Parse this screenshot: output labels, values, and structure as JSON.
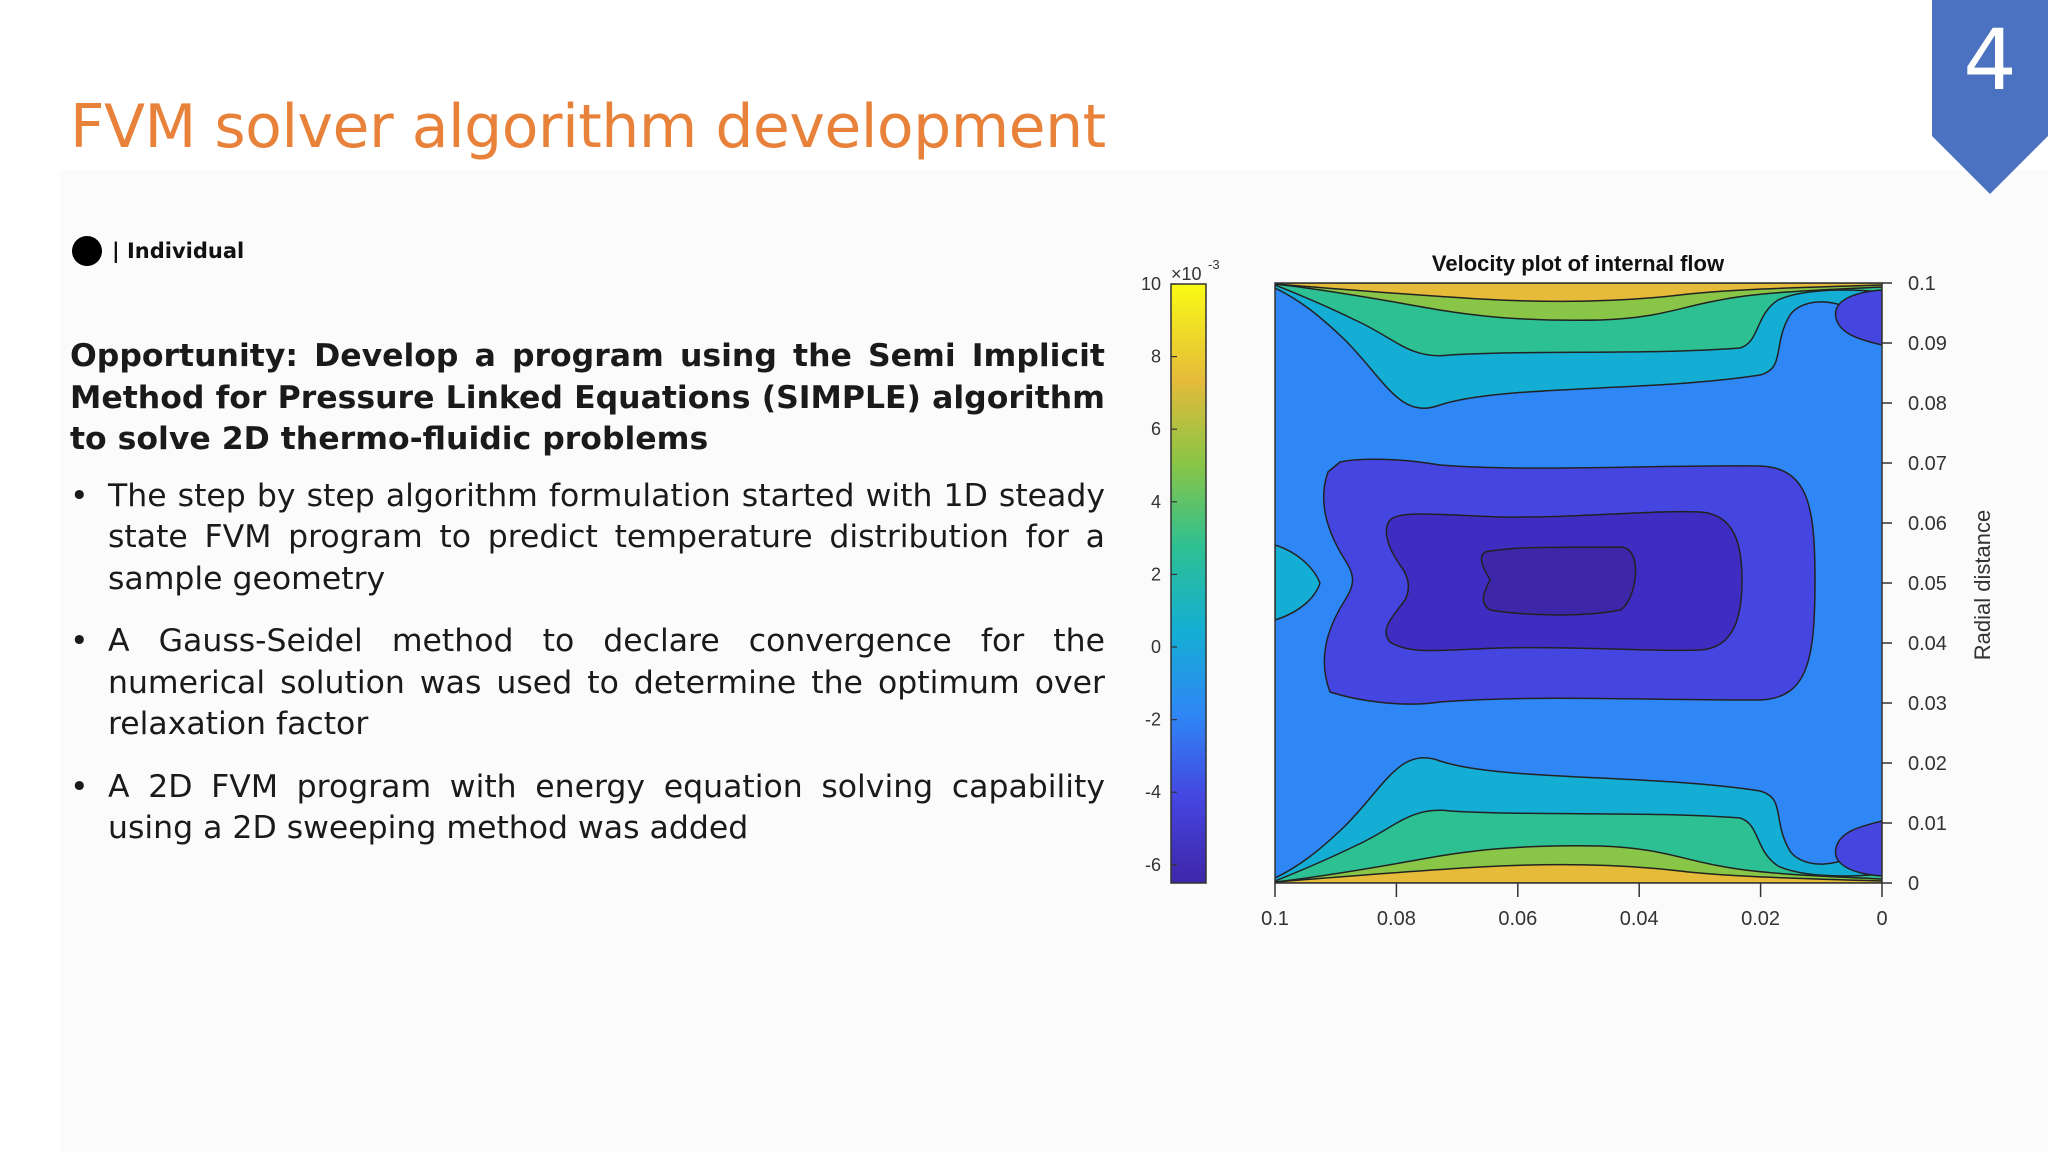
{
  "slide": {
    "title": "FVM solver algorithm development",
    "number": "4",
    "tag": "| Individual"
  },
  "content": {
    "opportunity": "Opportunity: Develop a program using the Semi Implicit Method for Pressure Linked Equations (SIMPLE) algorithm to solve 2D thermo-fluidic problems",
    "bullets": [
      "The step by step algorithm formulation started with 1D steady state FVM program to predict temperature distribution for a sample geometry",
      "A Gauss-Seidel method to declare convergence for the numerical solution was used to determine the optimum over relaxation factor",
      "A 2D FVM program with energy equation solving capability using a 2D sweeping method was added"
    ]
  },
  "colors": {
    "title": "#e8823a",
    "badge": "#4a72c0",
    "text": "#1a1a1a"
  },
  "chart_data": {
    "type": "contour",
    "title": "Velocity plot of internal flow",
    "xlabel": "",
    "ylabel": "Radial distance",
    "x_ticks": [
      "0.1",
      "0.08",
      "0.06",
      "0.04",
      "0.02",
      "0"
    ],
    "x_range": [
      0.1,
      0
    ],
    "y_ticks": [
      "0.1",
      "0.09",
      "0.08",
      "0.07",
      "0.06",
      "0.05",
      "0.04",
      "0.03",
      "0.02",
      "0.01",
      "0"
    ],
    "y_range": [
      0,
      0.1
    ],
    "colorbar": {
      "multiplier": "×10",
      "exponent": "-3",
      "ticks": [
        "10",
        "8",
        "6",
        "4",
        "2",
        "0",
        "-2",
        "-4",
        "-6"
      ],
      "range": [
        -6.5,
        10
      ],
      "colormap": "parula"
    },
    "contour_levels": [
      -6,
      -4,
      -2,
      0,
      2,
      4,
      6,
      8
    ]
  }
}
